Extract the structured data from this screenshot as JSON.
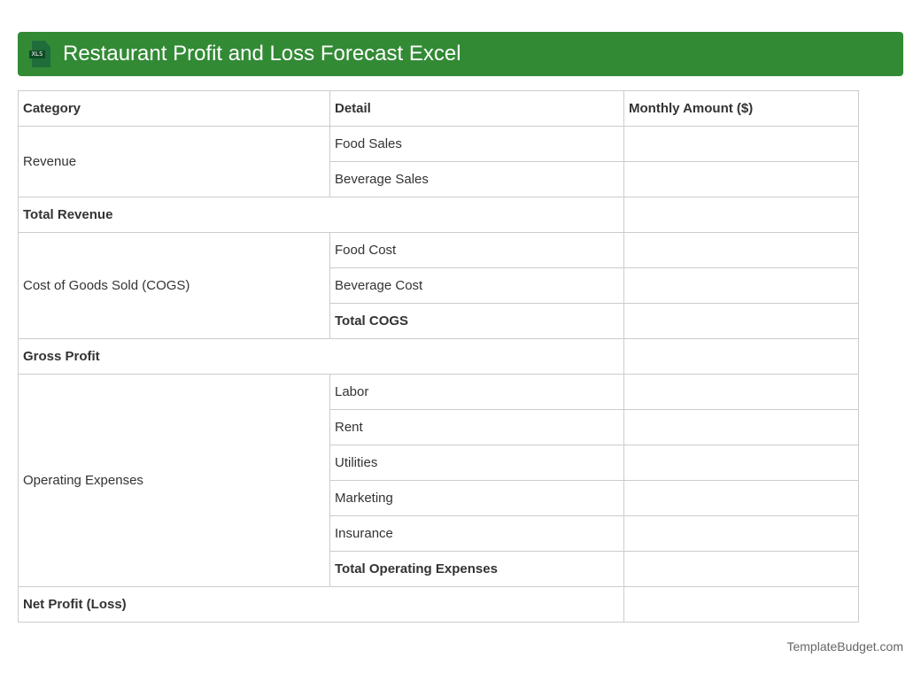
{
  "header": {
    "title": "Restaurant Profit and Loss Forecast Excel",
    "icon": "xls-file-icon",
    "icon_label": "XLS",
    "color": "#328a35"
  },
  "table": {
    "columns": [
      "Category",
      "Detail",
      "Monthly Amount ($)"
    ],
    "revenue": {
      "category": "Revenue",
      "items": [
        "Food Sales",
        "Beverage Sales"
      ]
    },
    "total_revenue": "Total Revenue",
    "cogs": {
      "category": "Cost of Goods Sold (COGS)",
      "items": [
        "Food Cost",
        "Beverage Cost"
      ],
      "total": "Total COGS"
    },
    "gross_profit": "Gross Profit",
    "opex": {
      "category": "Operating Expenses",
      "items": [
        "Labor",
        "Rent",
        "Utilities",
        "Marketing",
        "Insurance"
      ],
      "total": "Total Operating Expenses"
    },
    "net_profit": "Net Profit (Loss)"
  },
  "footer": "TemplateBudget.com"
}
